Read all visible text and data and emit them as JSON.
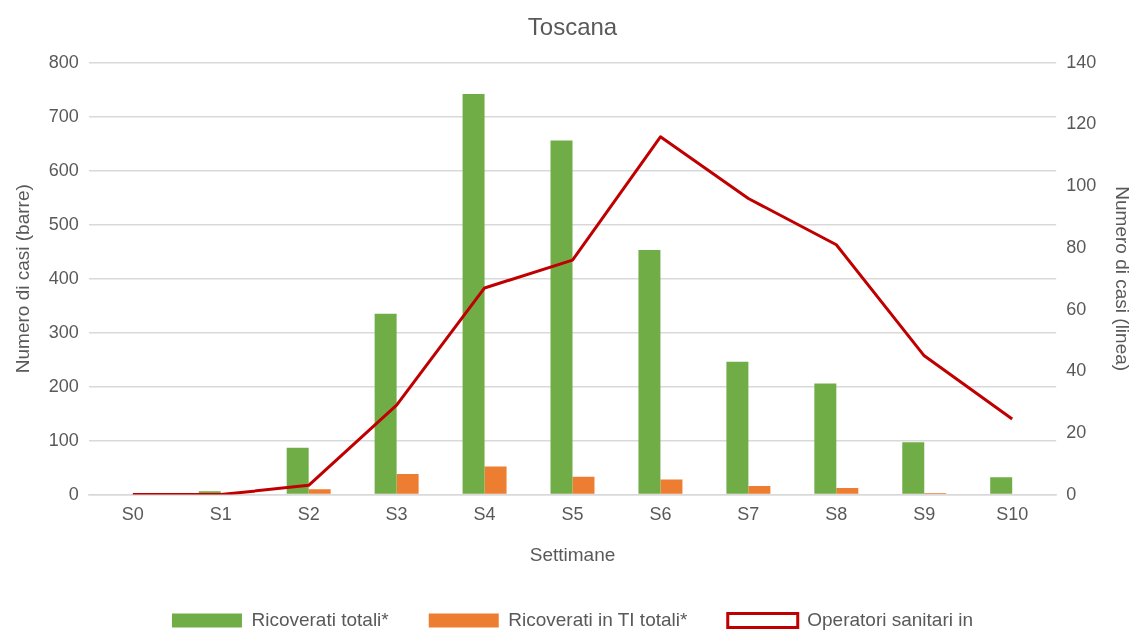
{
  "chart_data": {
    "type": "bar",
    "title": "Toscana",
    "xlabel": "Settimane",
    "ylabel": "Numero di casi (barre)",
    "y2label": "Numero di casi (linea)",
    "categories": [
      "S0",
      "S1",
      "S2",
      "S3",
      "S4",
      "S5",
      "S6",
      "S7",
      "S8",
      "S9",
      "S10"
    ],
    "series": [
      {
        "name": "Ricoverati totali*",
        "color": "#70ad47",
        "values": [
          0,
          6,
          87,
          335,
          742,
          656,
          453,
          246,
          206,
          97,
          32
        ]
      },
      {
        "name": "Ricoverati in TI totali*",
        "color": "#ed7d31",
        "values": [
          0,
          0,
          10,
          38,
          52,
          33,
          28,
          16,
          12,
          3,
          0
        ]
      },
      {
        "name": "Operatori sanitari in",
        "type": "line",
        "axis": "y2",
        "color": "#c00000",
        "values": [
          0,
          0,
          3,
          29,
          67,
          76,
          116,
          96,
          81,
          45,
          24.5
        ]
      }
    ],
    "ylim": [
      0,
      800
    ],
    "yticks": [
      0,
      100,
      200,
      300,
      400,
      500,
      600,
      700,
      800
    ],
    "y2lim": [
      0,
      140
    ],
    "y2ticks": [
      0,
      20,
      40,
      60,
      80,
      100,
      120,
      140
    ],
    "grid": "y",
    "legend": "bottom",
    "marker": "none",
    "line_style": "solid"
  }
}
